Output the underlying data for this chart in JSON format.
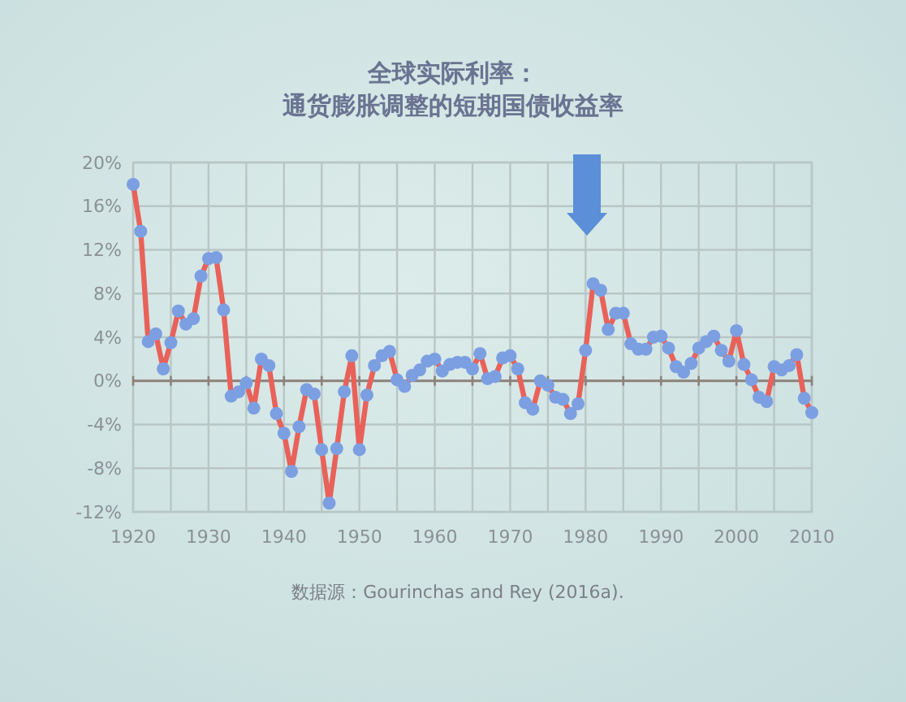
{
  "chart_data": {
    "type": "line",
    "title": "全球实际利率：",
    "subtitle": "通货膨胀调整的短期国债收益率",
    "x": [
      1920,
      1921,
      1922,
      1923,
      1924,
      1925,
      1926,
      1927,
      1928,
      1929,
      1930,
      1931,
      1932,
      1933,
      1934,
      1935,
      1936,
      1937,
      1938,
      1939,
      1940,
      1941,
      1942,
      1943,
      1944,
      1945,
      1946,
      1947,
      1948,
      1949,
      1950,
      1951,
      1952,
      1953,
      1954,
      1955,
      1956,
      1957,
      1958,
      1959,
      1960,
      1961,
      1962,
      1963,
      1964,
      1965,
      1966,
      1967,
      1968,
      1969,
      1970,
      1971,
      1972,
      1973,
      1974,
      1975,
      1976,
      1977,
      1978,
      1979,
      1980,
      1981,
      1982,
      1983,
      1984,
      1985,
      1986,
      1987,
      1988,
      1989,
      1990,
      1991,
      1992,
      1993,
      1994,
      1995,
      1996,
      1997,
      1998,
      1999,
      2000,
      2001,
      2002,
      2003,
      2004,
      2005,
      2006,
      2007,
      2008,
      2009,
      2010
    ],
    "series": [
      {
        "color": "#e8625a",
        "values": [
          18.0,
          13.7,
          3.6,
          4.3,
          1.1,
          3.5,
          6.4,
          5.2,
          5.7,
          9.6,
          11.2,
          11.3,
          6.5,
          -1.4,
          -1.0,
          -0.2,
          -2.5,
          2.0,
          1.4,
          -3.0,
          -4.8,
          -8.3,
          -4.2,
          -0.8,
          -1.2,
          -6.3,
          -11.2,
          -6.2,
          -1.0,
          2.3,
          -6.3,
          -1.3,
          1.4,
          2.3,
          2.7,
          0.1,
          -0.5,
          0.5,
          1.0,
          1.8,
          2.0,
          0.9,
          1.5,
          1.7,
          1.7,
          1.1,
          2.5,
          0.2,
          0.4,
          2.1,
          2.3,
          1.1,
          -2.0,
          -2.6,
          0.0,
          -0.4,
          -1.5,
          -1.7,
          -3.0,
          -2.1,
          2.8,
          8.9,
          8.3,
          4.7,
          6.2,
          6.2,
          3.4,
          2.9,
          2.9,
          4.0,
          4.1,
          3.0,
          1.3,
          0.8,
          1.6,
          3.0,
          3.6,
          4.1,
          2.8,
          1.8,
          4.6,
          1.5,
          0.1,
          -1.5,
          -1.9,
          1.3,
          1.0,
          1.4,
          2.4,
          -1.6,
          -2.9
        ]
      }
    ],
    "xlim": [
      1920,
      2010
    ],
    "xticks": [
      1920,
      {
        "value": 1925,
        "label": null
      },
      1930,
      {
        "value": 1935,
        "label": null
      },
      1940,
      {
        "value": 1945,
        "label": null
      },
      1950,
      {
        "value": 1955,
        "label": null
      },
      1960,
      {
        "value": 1965,
        "label": null
      },
      1970,
      {
        "value": 1975,
        "label": null
      },
      1980,
      {
        "value": 1985,
        "label": null
      },
      1990,
      {
        "value": 1995,
        "label": null
      },
      2000,
      {
        "value": 2005,
        "label": null
      },
      2010
    ],
    "ylim": [
      -12,
      20
    ],
    "yticks": [
      {
        "value": -12,
        "label": "-12%"
      },
      {
        "value": -8,
        "label": "-8%"
      },
      {
        "value": -4,
        "label": "-4%"
      },
      {
        "value": 0,
        "label": "0%"
      },
      {
        "value": 4,
        "label": "4%"
      },
      {
        "value": 8,
        "label": "8%"
      },
      {
        "value": 12,
        "label": "12%"
      },
      {
        "value": 16,
        "label": "16%"
      },
      {
        "value": 20,
        "label": "20%"
      }
    ],
    "grid": true,
    "marker": "circle",
    "line_style": "solid",
    "annotations": [
      "数据源：Gourinchas and Rey (2016a)."
    ]
  }
}
